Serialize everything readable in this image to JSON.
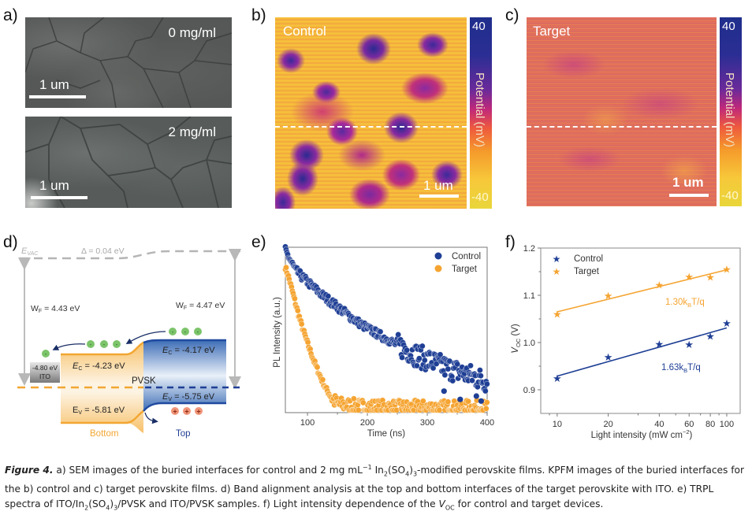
{
  "figure": {
    "panels": {
      "a": {
        "label": "a)",
        "top_image": {
          "condition": "0 mg/ml",
          "scale_bar": "1 um"
        },
        "bottom_image": {
          "condition": "2 mg/ml",
          "scale_bar": "1 um"
        }
      },
      "b": {
        "label": "b)",
        "title": "Control",
        "scale_bar": "1 um",
        "colorbar": {
          "max": "40",
          "min": "-40",
          "title": "Potential (mV)"
        }
      },
      "c": {
        "label": "c)",
        "title": "Target",
        "scale_bar": "1 um",
        "colorbar": {
          "max": "40",
          "min": "-40",
          "title": "Potential (mV)"
        }
      },
      "d": {
        "label": "d)",
        "evac": "E",
        "evac_sub": "VAC",
        "delta": "Δ = 0.04 eV",
        "wf_left": {
          "main": "W",
          "sub": "F",
          "rest": " = 4.43 eV"
        },
        "wf_right": {
          "main": "W",
          "sub": "F",
          "rest": " = 4.47 eV"
        },
        "ito_value": "-4.80 eV",
        "ito_label": "ITO",
        "ec_bottom": {
          "main": "E",
          "sub": "C",
          "rest": " = -4.23 eV"
        },
        "ec_top": {
          "main": "E",
          "sub": "C",
          "rest": " = -4.17 eV"
        },
        "ev_bottom": {
          "main": "E",
          "sub": "V",
          "rest": " = -5.81 eV"
        },
        "ev_top": {
          "main": "E",
          "sub": "V",
          "rest": " = -5.75 eV"
        },
        "pvsk": "PVSK",
        "bottom_label": "Bottom",
        "top_label": "Top",
        "electron_symbol": "-",
        "hole_symbol": "+"
      }
    },
    "caption": {
      "figure_label": "Figure 4.",
      "text_1": " a) SEM images of the buried interfaces for control and 2 mg mL",
      "sup_1": "−1",
      "text_2": " In",
      "sub_1": "2",
      "text_3": "(SO",
      "sub_2": "4",
      "text_4": ")",
      "sub_3": "3",
      "text_5": "-modified perovskite films. KPFM images of the buried interfaces for the b) control and c) target perovskite films. d) Band alignment analysis at the top and bottom interfaces of the target perovskite with ITO. e) TRPL spectra of ITO/In",
      "sub_4": "2",
      "text_6": "(SO",
      "sub_5": "4",
      "text_7": ")",
      "sub_6": "3",
      "text_8": "/PVSK and ITO/PVSK samples. f) Light intensity dependence of the ",
      "voc_main": "V",
      "voc_sub": "OC",
      "text_9": " for control and target devices."
    }
  },
  "colors": {
    "control": "#1f3f95",
    "target": "#f5a431",
    "band_bottom": "#f7c97a",
    "band_top": "#2f5fae",
    "electron": "#7cc46a",
    "hole": "#f0957a"
  },
  "chart_data": [
    {
      "panel": "e)",
      "type": "scatter",
      "title": "",
      "xlabel": "Time (ns)",
      "ylabel": "PL Intensity (a.u.)",
      "xlim": [
        63,
        400
      ],
      "ylim": [
        0,
        1
      ],
      "xticks": [
        "100",
        "200",
        "300",
        "400"
      ],
      "yticks": [],
      "legend": {
        "position": "top-right",
        "entries": [
          "Control",
          "Target"
        ]
      },
      "series": [
        {
          "name": "Control",
          "description": "slow decay, normalized intensity",
          "x": [
            63,
            80,
            100,
            125,
            150,
            175,
            200,
            225,
            250,
            275,
            300,
            325,
            350,
            375,
            400
          ],
          "y": [
            0.98,
            0.86,
            0.79,
            0.71,
            0.64,
            0.57,
            0.51,
            0.46,
            0.41,
            0.36,
            0.32,
            0.28,
            0.25,
            0.22,
            0.19
          ]
        },
        {
          "name": "Target",
          "description": "fast decay reaching noise floor ~150 ns",
          "x": [
            63,
            70,
            80,
            90,
            100,
            110,
            120,
            130,
            140,
            150,
            175,
            200,
            250,
            300,
            350,
            400
          ],
          "y": [
            0.88,
            0.8,
            0.66,
            0.53,
            0.42,
            0.32,
            0.23,
            0.15,
            0.09,
            0.05,
            0.04,
            0.035,
            0.03,
            0.03,
            0.03,
            0.03
          ]
        }
      ]
    },
    {
      "panel": "f)",
      "type": "scatter",
      "title": "",
      "xlabel": "Light intensity (mW cm⁻²)",
      "ylabel": "V_OC (V)",
      "xscale": "log",
      "xlim": [
        8,
        120
      ],
      "ylim": [
        0.85,
        1.2
      ],
      "xticks": [
        "10",
        "20",
        "40",
        "60",
        "80",
        "100"
      ],
      "yticks": [
        "0.9",
        "1.0",
        "1.1",
        "1.2"
      ],
      "legend": {
        "position": "top-left",
        "entries": [
          "Control",
          "Target"
        ]
      },
      "annotations": [
        {
          "text": "1.30k",
          "sub": "B",
          "rest": "T/q",
          "series": "Target"
        },
        {
          "text": "1.63k",
          "sub": "B",
          "rest": "T/q",
          "series": "Control"
        }
      ],
      "series": [
        {
          "name": "Control",
          "x": [
            10,
            20,
            40,
            60,
            80,
            100
          ],
          "y": [
            0.924,
            0.969,
            0.997,
            0.996,
            1.013,
            1.041
          ],
          "fit": {
            "x": [
              10,
              100
            ],
            "y": [
              0.929,
              1.031
            ]
          }
        },
        {
          "name": "Target",
          "x": [
            10,
            20,
            40,
            60,
            80,
            100
          ],
          "y": [
            1.06,
            1.099,
            1.122,
            1.139,
            1.138,
            1.155
          ],
          "fit": {
            "x": [
              10,
              100
            ],
            "y": [
              1.065,
              1.154
            ]
          }
        }
      ]
    }
  ]
}
